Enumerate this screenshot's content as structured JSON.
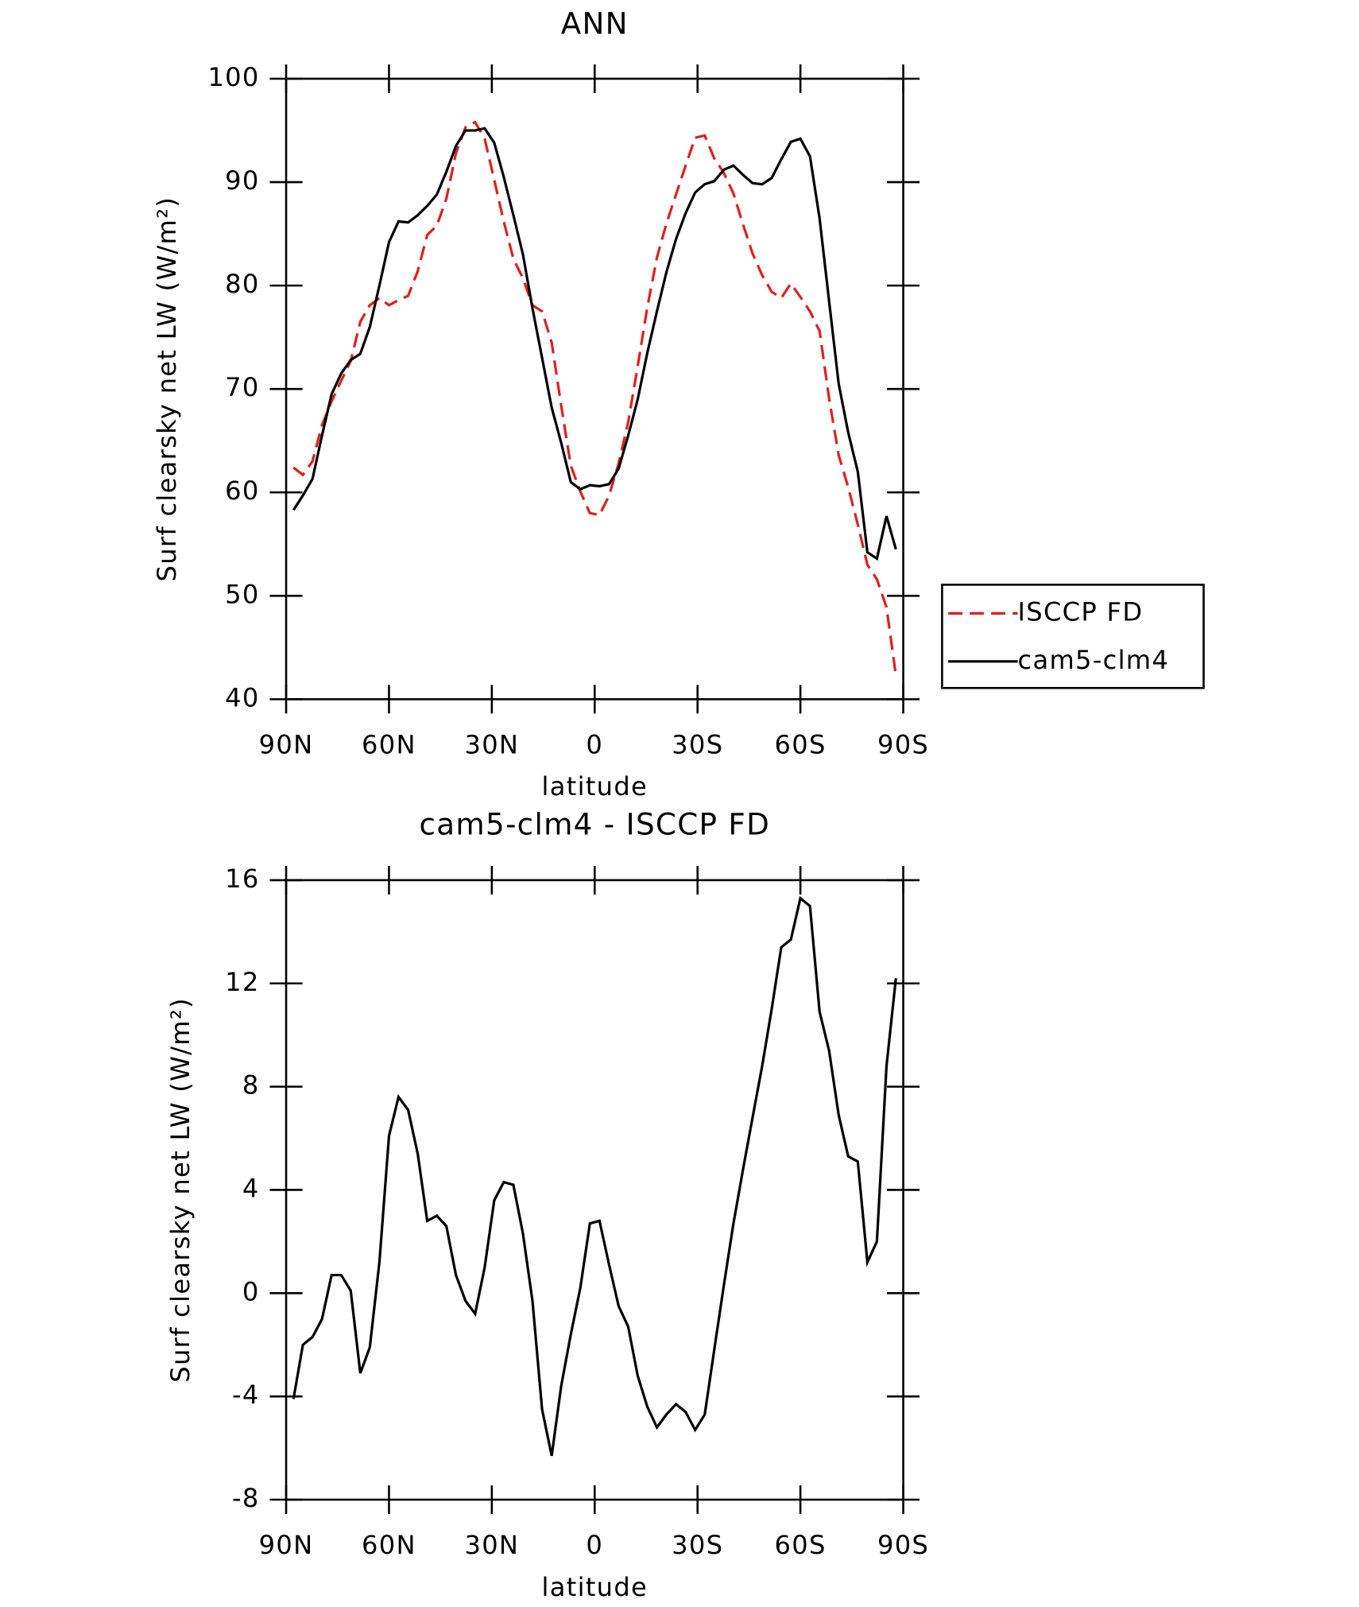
{
  "chart_data": [
    {
      "type": "line",
      "title": "ANN",
      "xlabel": "latitude",
      "ylabel": "Surf clearsky net LW (W/m²)",
      "x": [
        87.86,
        85.1,
        82.31,
        79.53,
        76.74,
        73.95,
        71.16,
        68.37,
        65.58,
        62.79,
        60.0,
        57.21,
        54.42,
        51.63,
        48.84,
        46.05,
        43.26,
        40.47,
        37.67,
        34.88,
        32.09,
        29.3,
        26.51,
        23.72,
        20.93,
        18.14,
        15.35,
        12.56,
        9.77,
        6.98,
        4.19,
        1.4,
        -1.4,
        -4.19,
        -6.98,
        -9.77,
        -12.56,
        -15.35,
        -18.14,
        -20.93,
        -23.72,
        -26.51,
        -29.3,
        -32.09,
        -34.88,
        -37.67,
        -40.47,
        -43.26,
        -46.05,
        -48.84,
        -51.63,
        -54.42,
        -57.21,
        -60.0,
        -62.79,
        -65.58,
        -68.37,
        -71.16,
        -73.95,
        -76.74,
        -79.53,
        -82.31,
        -85.1,
        -87.86
      ],
      "series": [
        {
          "name": "ISCCP FD",
          "color": "#e0201c",
          "linestyle": "dashed",
          "values": [
            62.4,
            61.7,
            63.0,
            66.5,
            68.8,
            70.8,
            72.7,
            76.5,
            78.1,
            78.8,
            78.1,
            78.6,
            79.0,
            81.4,
            84.9,
            85.8,
            88.4,
            92.8,
            95.3,
            95.8,
            94.2,
            90.2,
            86.2,
            82.6,
            80.7,
            78.1,
            77.5,
            74.5,
            68.4,
            62.6,
            60.1,
            58.0,
            57.8,
            59.7,
            62.8,
            66.8,
            72.2,
            77.9,
            82.7,
            86.0,
            88.8,
            91.6,
            94.3,
            94.5,
            92.3,
            90.9,
            88.9,
            85.9,
            83.1,
            81.0,
            79.4,
            78.8,
            80.2,
            78.9,
            77.5,
            75.6,
            69.1,
            63.6,
            60.5,
            56.9,
            53.0,
            51.6,
            48.9,
            42.3
          ]
        },
        {
          "name": "cam5-clm4",
          "color": "#000000",
          "linestyle": "solid",
          "values": [
            58.3,
            59.7,
            61.3,
            65.5,
            69.5,
            71.5,
            72.8,
            73.4,
            76.0,
            80.0,
            84.2,
            86.2,
            86.1,
            86.8,
            87.7,
            88.8,
            91.0,
            93.5,
            95.0,
            95.0,
            95.2,
            93.8,
            90.5,
            86.8,
            83.0,
            77.8,
            73.0,
            68.2,
            64.8,
            61.0,
            60.3,
            60.7,
            60.6,
            60.8,
            62.3,
            65.5,
            69.0,
            73.5,
            77.5,
            81.3,
            84.5,
            87.0,
            89.0,
            89.8,
            90.1,
            91.2,
            91.6,
            90.7,
            89.9,
            89.8,
            90.4,
            92.2,
            93.9,
            94.2,
            92.5,
            86.5,
            78.5,
            70.5,
            65.8,
            62.0,
            54.2,
            53.6,
            57.7,
            54.5
          ]
        }
      ],
      "xlim": [
        90,
        -90
      ],
      "xticks": [
        {
          "value": 90,
          "label": "90N"
        },
        {
          "value": 60,
          "label": "60N"
        },
        {
          "value": 30,
          "label": "30N"
        },
        0,
        {
          "value": -30,
          "label": "30S"
        },
        {
          "value": -60,
          "label": "60S"
        },
        {
          "value": -90,
          "label": "90S"
        }
      ],
      "ylim": [
        40,
        100
      ],
      "yticks": [
        40,
        50,
        60,
        70,
        80,
        90,
        100
      ],
      "legend": "outside right"
    },
    {
      "type": "line",
      "title": "cam5-clm4 - ISCCP FD",
      "xlabel": "latitude",
      "ylabel": "Surf clearsky net LW (W/m²)",
      "x": [
        87.86,
        85.1,
        82.31,
        79.53,
        76.74,
        73.95,
        71.16,
        68.37,
        65.58,
        62.79,
        60.0,
        57.21,
        54.42,
        51.63,
        48.84,
        46.05,
        43.26,
        40.47,
        37.67,
        34.88,
        32.09,
        29.3,
        26.51,
        23.72,
        20.93,
        18.14,
        15.35,
        12.56,
        9.77,
        6.98,
        4.19,
        1.4,
        -1.4,
        -4.19,
        -6.98,
        -9.77,
        -12.56,
        -15.35,
        -18.14,
        -20.93,
        -23.72,
        -26.51,
        -29.3,
        -32.09,
        -34.88,
        -37.67,
        -40.47,
        -43.26,
        -46.05,
        -48.84,
        -51.63,
        -54.42,
        -57.21,
        -60.0,
        -62.79,
        -65.58,
        -68.37,
        -71.16,
        -73.95,
        -76.74,
        -79.53,
        -82.31,
        -85.1,
        -87.86
      ],
      "series": [
        {
          "color": "#000000",
          "linestyle": "solid",
          "values": [
            -4.1,
            -2.0,
            -1.7,
            -1.0,
            0.7,
            0.7,
            0.1,
            -3.1,
            -2.1,
            1.2,
            6.1,
            7.6,
            7.1,
            5.4,
            2.8,
            3.0,
            2.6,
            0.7,
            -0.3,
            -0.8,
            1.0,
            3.6,
            4.3,
            4.2,
            2.3,
            -0.3,
            -4.5,
            -6.3,
            -3.6,
            -1.6,
            0.2,
            2.7,
            2.8,
            1.1,
            -0.5,
            -1.3,
            -3.2,
            -4.4,
            -5.2,
            -4.7,
            -4.3,
            -4.6,
            -5.3,
            -4.7,
            -2.2,
            0.3,
            2.7,
            4.8,
            6.8,
            8.8,
            11.0,
            13.4,
            13.7,
            15.3,
            15.0,
            10.9,
            9.4,
            6.9,
            5.3,
            5.1,
            1.2,
            2.0,
            8.8,
            12.2
          ]
        }
      ],
      "xlim": [
        90,
        -90
      ],
      "xticks": [
        {
          "value": 90,
          "label": "90N"
        },
        {
          "value": 60,
          "label": "60N"
        },
        {
          "value": 30,
          "label": "30N"
        },
        0,
        {
          "value": -30,
          "label": "30S"
        },
        {
          "value": -60,
          "label": "60S"
        },
        {
          "value": -90,
          "label": "90S"
        }
      ],
      "ylim": [
        -8,
        16
      ],
      "yticks": [
        -8,
        -4,
        0,
        4,
        8,
        12,
        16
      ]
    }
  ]
}
